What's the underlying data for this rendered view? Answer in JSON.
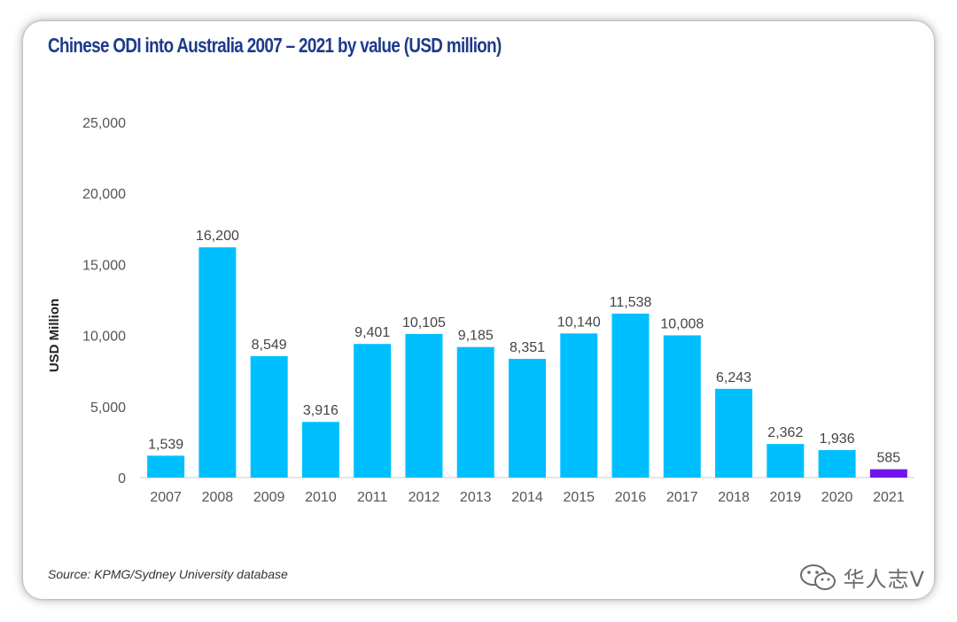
{
  "colors": {
    "bar": "#00bfff",
    "highlight": "#7213ea",
    "title": "#1e3a8a",
    "axis_line": "#cccccc"
  },
  "chart_data": {
    "type": "bar",
    "title": "Chinese ODI into Australia 2007 – 2021 by value (USD million)",
    "xlabel": "",
    "ylabel": "USD Million",
    "categories": [
      "2007",
      "2008",
      "2009",
      "2010",
      "2011",
      "2012",
      "2013",
      "2014",
      "2015",
      "2016",
      "2017",
      "2018",
      "2019",
      "2020",
      "2021"
    ],
    "values": [
      1539,
      16200,
      8549,
      3916,
      9401,
      10105,
      9185,
      8351,
      10140,
      11538,
      10008,
      6243,
      2362,
      1936,
      585
    ],
    "value_labels": [
      "1,539",
      "16,200",
      "8,549",
      "3,916",
      "9,401",
      "10,105",
      "9,185",
      "8,351",
      "10,140",
      "11,538",
      "10,008",
      "6,243",
      "2,362",
      "1,936",
      "585"
    ],
    "highlight_category": "2021",
    "ylim": [
      0,
      25000
    ],
    "yticks": [
      0,
      5000,
      10000,
      15000,
      20000,
      25000
    ],
    "ytick_labels": [
      "0",
      "5,000",
      "10,000",
      "15,000",
      "20,000",
      "25,000"
    ],
    "grid": false,
    "legend": "none"
  },
  "source": "Source: KPMG/Sydney University database",
  "watermark": {
    "icon": "wechat-icon",
    "text": "华人志V"
  }
}
